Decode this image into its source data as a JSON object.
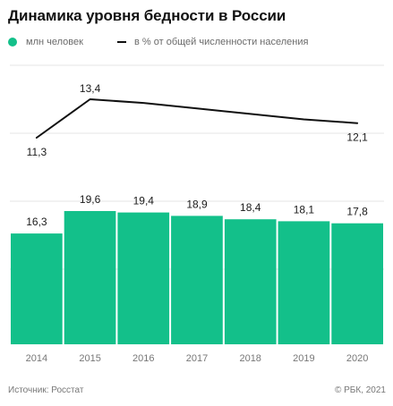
{
  "title": "Динамика уровня бедности в России",
  "legend": {
    "bars_label": "млн человек",
    "line_label": "в % от общей численности населения"
  },
  "colors": {
    "bar": "#13c08a",
    "line": "#111111",
    "grid": "#e6e6e6",
    "tick": "#777777",
    "label": "#1a1a1a"
  },
  "chart_data": {
    "type": "bar+line",
    "title": "Динамика уровня бедности в России",
    "categories": [
      "2014",
      "2015",
      "2016",
      "2017",
      "2018",
      "2019",
      "2020"
    ],
    "series": [
      {
        "name": "млн человек",
        "type": "bar",
        "values": [
          16.3,
          19.6,
          19.4,
          18.9,
          18.4,
          18.1,
          17.8
        ],
        "labels": [
          "16,3",
          "19,6",
          "19,4",
          "18,9",
          "18,4",
          "18,1",
          "17,8"
        ]
      },
      {
        "name": "в % от общей численности населения",
        "type": "line",
        "values": [
          11.3,
          13.4,
          13.2,
          12.9,
          12.6,
          12.3,
          12.1
        ],
        "labels": [
          "11,3",
          "13,4",
          "",
          "",
          "",
          "",
          "12,1"
        ]
      }
    ],
    "legend_position": "top-left",
    "grid": "horizontal"
  },
  "footer": {
    "source": "Источник: Росстат",
    "credit": "© РБК, 2021"
  }
}
